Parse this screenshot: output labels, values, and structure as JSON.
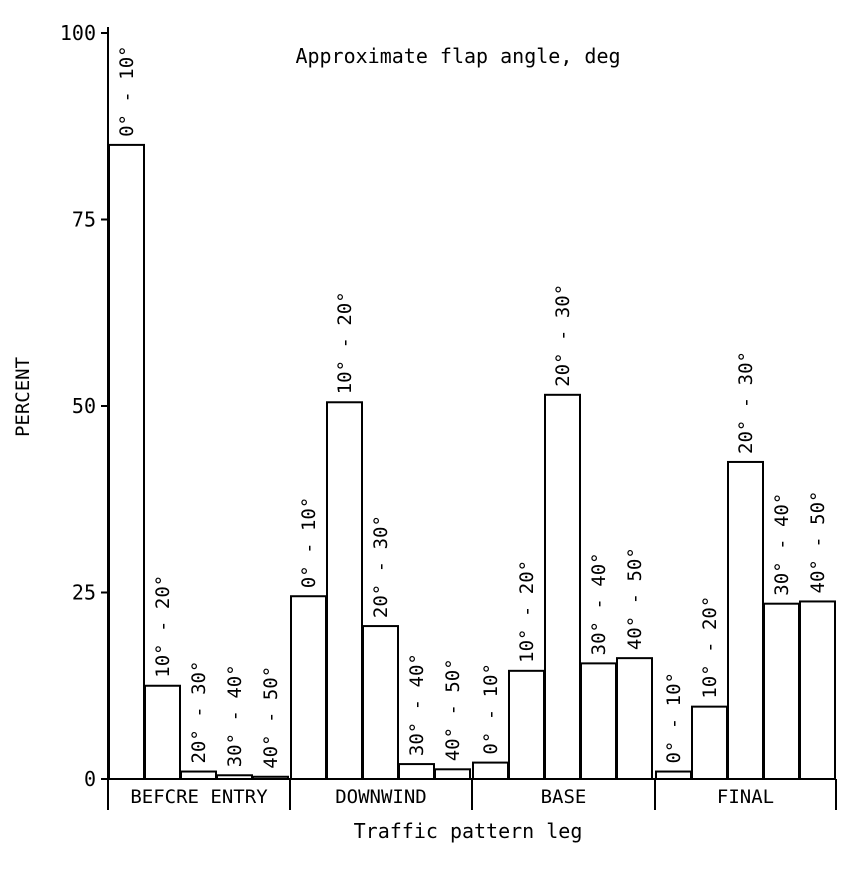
{
  "chart_data": {
    "type": "bar",
    "title": "Approximate flap angle, deg",
    "xlabel": "Traffic pattern leg",
    "ylabel": "PERCENT",
    "ylim": [
      0,
      100
    ],
    "yticks": [
      "0",
      "25",
      "50",
      "75",
      "100"
    ],
    "grid": false,
    "groups": [
      {
        "name": "BEFCRE ENTRY",
        "bars": [
          {
            "label": "0° - 10°",
            "value": 85
          },
          {
            "label": "10° - 20°",
            "value": 12.5
          },
          {
            "label": "20° - 30°",
            "value": 1
          },
          {
            "label": "30° - 40°",
            "value": 0.5
          },
          {
            "label": "40° - 50°",
            "value": 0.3
          }
        ]
      },
      {
        "name": "DOWNWIND",
        "bars": [
          {
            "label": "0° - 10°",
            "value": 24.5
          },
          {
            "label": "10° - 20°",
            "value": 50.5
          },
          {
            "label": "20° - 30°",
            "value": 20.5
          },
          {
            "label": "30° - 40°",
            "value": 2
          },
          {
            "label": "40° - 50°",
            "value": 1.3
          }
        ]
      },
      {
        "name": "BASE",
        "bars": [
          {
            "label": "0° - 10°",
            "value": 2.2
          },
          {
            "label": "10° - 20°",
            "value": 14.5
          },
          {
            "label": "20° - 30°",
            "value": 51.5
          },
          {
            "label": "30° - 40°",
            "value": 15.5
          },
          {
            "label": "40° - 50°",
            "value": 16.2
          }
        ]
      },
      {
        "name": "FINAL",
        "bars": [
          {
            "label": "0° - 10°",
            "value": 1
          },
          {
            "label": "10° - 20°",
            "value": 9.7
          },
          {
            "label": "20° - 30°",
            "value": 42.5
          },
          {
            "label": "30° - 40°",
            "value": 23.5
          },
          {
            "label": "40° - 50°",
            "value": 23.8
          }
        ]
      }
    ]
  }
}
